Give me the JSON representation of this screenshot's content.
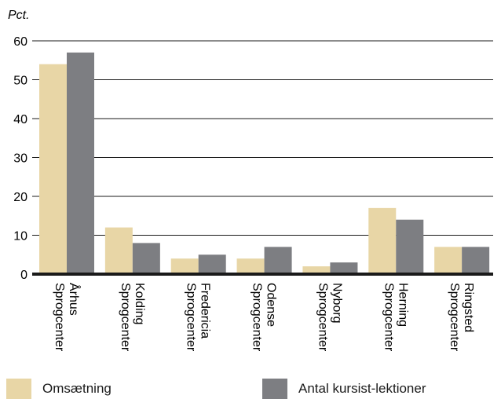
{
  "chart_data": {
    "type": "bar",
    "ylabel": "Pct.",
    "ylim": [
      0,
      60
    ],
    "yticks": [
      0,
      10,
      20,
      30,
      40,
      50,
      60
    ],
    "grid": true,
    "legend_position": "bottom",
    "categories": [
      [
        "Århus",
        "Sprogcenter"
      ],
      [
        "Kolding",
        "Sprogcenter"
      ],
      [
        "Fredericia",
        "Sprogcenter"
      ],
      [
        "Odense",
        "Sprogcenter"
      ],
      [
        "Nyborg",
        "Sprogcenter"
      ],
      [
        "Herning",
        "Sprogcenter"
      ],
      [
        "Ringsted",
        "Sprogcenter"
      ]
    ],
    "series": [
      {
        "name": "Omsætning",
        "color": "#e8d6a6",
        "values": [
          54,
          12,
          4,
          4,
          2,
          17,
          7
        ]
      },
      {
        "name": "Antal kursist-lektioner",
        "color": "#7d7e82",
        "values": [
          57,
          8,
          5,
          7,
          3,
          14,
          7
        ]
      }
    ]
  }
}
